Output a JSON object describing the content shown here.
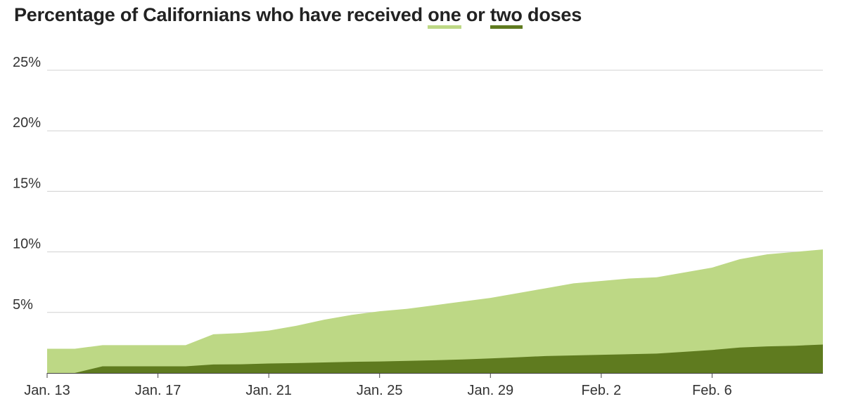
{
  "title": {
    "part1": "Percentage of Californians who have received ",
    "one_word": "one",
    "part2": " or ",
    "two_word": "two",
    "part3": " doses"
  },
  "colors": {
    "one_dose": "#bdd885",
    "two_doses": "#5f7b1f",
    "grid": "#d0d0d0",
    "axis": "#444444"
  },
  "chart_data": {
    "type": "area",
    "stacked": false,
    "x_dates": [
      "Jan. 13",
      "Jan. 14",
      "Jan. 15",
      "Jan. 16",
      "Jan. 17",
      "Jan. 18",
      "Jan. 19",
      "Jan. 20",
      "Jan. 21",
      "Jan. 22",
      "Jan. 23",
      "Jan. 24",
      "Jan. 25",
      "Jan. 26",
      "Jan. 27",
      "Jan. 28",
      "Jan. 29",
      "Jan. 30",
      "Jan. 31",
      "Feb. 1",
      "Feb. 2",
      "Feb. 3",
      "Feb. 4",
      "Feb. 5",
      "Feb. 6",
      "Feb. 7",
      "Feb. 8",
      "Feb. 9",
      "Feb. 10"
    ],
    "x_tick_labels": [
      "Jan. 13",
      "Jan. 17",
      "Jan. 21",
      "Jan. 25",
      "Jan. 29",
      "Feb. 2",
      "Feb. 6"
    ],
    "y_ticks": [
      5,
      10,
      15,
      20,
      25
    ],
    "y_tick_labels": [
      "5%",
      "10%",
      "15%",
      "20%",
      "25%"
    ],
    "ylim": [
      0,
      25
    ],
    "series": [
      {
        "key": "one",
        "values": [
          2.0,
          2.0,
          2.3,
          2.3,
          2.3,
          2.3,
          3.2,
          3.3,
          3.5,
          3.9,
          4.4,
          4.8,
          5.1,
          5.3,
          5.6,
          5.9,
          6.2,
          6.6,
          7.0,
          7.4,
          7.6,
          7.8,
          7.9,
          8.3,
          8.7,
          9.4,
          9.8,
          10.0,
          10.2
        ]
      },
      {
        "key": "two",
        "values": [
          null,
          0.0,
          0.55,
          0.55,
          0.55,
          0.55,
          0.7,
          0.72,
          0.78,
          0.82,
          0.87,
          0.92,
          0.95,
          1.0,
          1.05,
          1.12,
          1.2,
          1.3,
          1.4,
          1.45,
          1.5,
          1.55,
          1.6,
          1.75,
          1.9,
          2.1,
          2.2,
          2.25,
          2.35
        ]
      }
    ],
    "grid": true,
    "legend": "title-inline"
  }
}
